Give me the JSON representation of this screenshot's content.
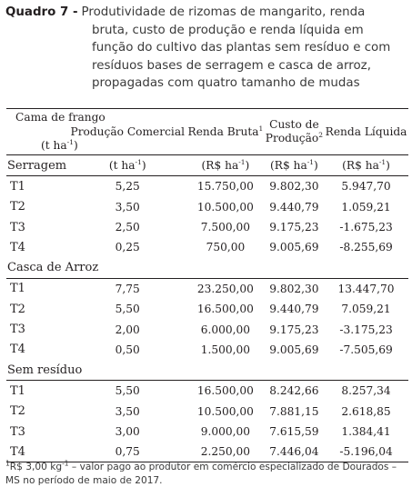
{
  "caption": {
    "label": "Quadro 7 -",
    "line1": "Produtividade de rizomas de mangarito, renda",
    "line2": "bruta, custo de produção e renda líquida em",
    "line3": "função do cultivo das plantas sem resíduo e com",
    "line4": "resíduos bases de serragem e casca de arroz,",
    "line5": "propagadas com quatro tamanho de mudas"
  },
  "table": {
    "header": {
      "col1_line1": "Cama de frango",
      "col1_line2": "(t ha",
      "col1_line2_sup": "-1",
      "col1_line2_end": ")",
      "col2": "Produção Comercial",
      "col3": "Renda Bruta",
      "col3_sup": "1",
      "col4a": "Custo de",
      "col4b": "Produção",
      "col4_sup": "2",
      "col5": "Renda Líquida"
    },
    "units": {
      "u2": "(t ha",
      "u2_sup": "-1",
      "u2_end": ")",
      "u3": "(R$ ha",
      "u3_sup": "-1",
      "u3_end": ")",
      "u4": "(R$ ha",
      "u4_sup": "-1",
      "u4_end": ")",
      "u5": "(R$ ha",
      "u5_sup": "-1",
      "u5_end": ")"
    },
    "groups": [
      {
        "name": "Serragem",
        "rows": [
          {
            "t": "T1",
            "prod": "5,25",
            "bruta": "15.750,00",
            "custo": "9.802,30",
            "liquida": "5.947,70"
          },
          {
            "t": "T2",
            "prod": "3,50",
            "bruta": "10.500,00",
            "custo": "9.440,79",
            "liquida": "1.059,21"
          },
          {
            "t": "T3",
            "prod": "2,50",
            "bruta": "7.500,00",
            "custo": "9.175,23",
            "liquida": "-1.675,23"
          },
          {
            "t": "T4",
            "prod": "0,25",
            "bruta": "750,00",
            "custo": "9.005,69",
            "liquida": "-8.255,69"
          }
        ]
      },
      {
        "name": "Casca de Arroz",
        "rows": [
          {
            "t": "T1",
            "prod": "7,75",
            "bruta": "23.250,00",
            "custo": "9.802,30",
            "liquida": "13.447,70"
          },
          {
            "t": "T2",
            "prod": "5,50",
            "bruta": "16.500,00",
            "custo": "9.440,79",
            "liquida": "7.059,21"
          },
          {
            "t": "T3",
            "prod": "2,00",
            "bruta": "6.000,00",
            "custo": "9.175,23",
            "liquida": "-3.175,23"
          },
          {
            "t": "T4",
            "prod": "0,50",
            "bruta": "1.500,00",
            "custo": "9.005,69",
            "liquida": "-7.505,69"
          }
        ]
      },
      {
        "name": "Sem resíduo",
        "rows": [
          {
            "t": "T1",
            "prod": "5,50",
            "bruta": "16.500,00",
            "custo": "8.242,66",
            "liquida": "8.257,34"
          },
          {
            "t": "T2",
            "prod": "3,50",
            "bruta": "10.500,00",
            "custo": "7.881,15",
            "liquida": "2.618,85"
          },
          {
            "t": "T3",
            "prod": "3,00",
            "bruta": "9.000,00",
            "custo": "7.615,59",
            "liquida": "1.384,41"
          },
          {
            "t": "T4",
            "prod": "0,75",
            "bruta": "2.250,00",
            "custo": "7.446,04",
            "liquida": "-5.196,04"
          }
        ]
      }
    ]
  },
  "footnote": {
    "sup": "1",
    "text": "R$ 3,00 kg",
    "text_sup": "-1",
    "text_end": " – valor pago ao produtor em comércio especializado de Dourados – MS no período de maio de 2017."
  }
}
